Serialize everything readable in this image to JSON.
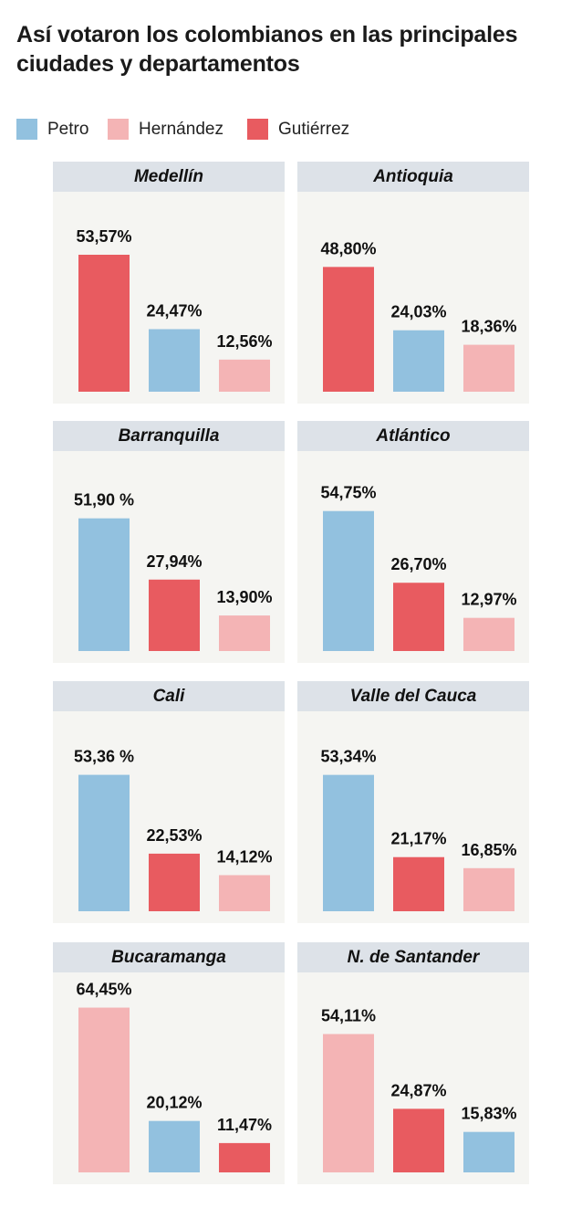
{
  "title": "Así votaron los colombianos en las principales ciudades y departamentos",
  "legend": [
    {
      "label": "Petro",
      "color": "#92c1df"
    },
    {
      "label": "Hernández",
      "color": "#f4b4b5"
    },
    {
      "label": "Gutiérrez",
      "color": "#e85b60"
    }
  ],
  "chart_data": [
    {
      "type": "bar",
      "title": "Medellín",
      "ylim": [
        0,
        70
      ],
      "bars": [
        {
          "candidate": "Gutiérrez",
          "value": 53.57,
          "label": "53,57%"
        },
        {
          "candidate": "Petro",
          "value": 24.47,
          "label": "24,47%"
        },
        {
          "candidate": "Hernández",
          "value": 12.56,
          "label": "12,56%"
        }
      ]
    },
    {
      "type": "bar",
      "title": "Antioquia",
      "ylim": [
        0,
        70
      ],
      "bars": [
        {
          "candidate": "Gutiérrez",
          "value": 48.8,
          "label": "48,80%"
        },
        {
          "candidate": "Petro",
          "value": 24.03,
          "label": "24,03%"
        },
        {
          "candidate": "Hernández",
          "value": 18.36,
          "label": "18,36%"
        }
      ]
    },
    {
      "type": "bar",
      "title": "Barranquilla",
      "ylim": [
        0,
        70
      ],
      "bars": [
        {
          "candidate": "Petro",
          "value": 51.9,
          "label": "51,90 %"
        },
        {
          "candidate": "Gutiérrez",
          "value": 27.94,
          "label": "27,94%"
        },
        {
          "candidate": "Hernández",
          "value": 13.9,
          "label": "13,90%"
        }
      ]
    },
    {
      "type": "bar",
      "title": "Atlántico",
      "ylim": [
        0,
        70
      ],
      "bars": [
        {
          "candidate": "Petro",
          "value": 54.75,
          "label": "54,75%"
        },
        {
          "candidate": "Gutiérrez",
          "value": 26.7,
          "label": "26,70%"
        },
        {
          "candidate": "Hernández",
          "value": 12.97,
          "label": "12,97%"
        }
      ]
    },
    {
      "type": "bar",
      "title": "Cali",
      "ylim": [
        0,
        70
      ],
      "bars": [
        {
          "candidate": "Petro",
          "value": 53.36,
          "label": "53,36 %"
        },
        {
          "candidate": "Gutiérrez",
          "value": 22.53,
          "label": "22,53%"
        },
        {
          "candidate": "Hernández",
          "value": 14.12,
          "label": "14,12%"
        }
      ]
    },
    {
      "type": "bar",
      "title": "Valle del Cauca",
      "ylim": [
        0,
        70
      ],
      "bars": [
        {
          "candidate": "Petro",
          "value": 53.34,
          "label": "53,34%"
        },
        {
          "candidate": "Gutiérrez",
          "value": 21.17,
          "label": "21,17%"
        },
        {
          "candidate": "Hernández",
          "value": 16.85,
          "label": "16,85%"
        }
      ]
    },
    {
      "type": "bar",
      "title": "Bucaramanga",
      "ylim": [
        0,
        70
      ],
      "bars": [
        {
          "candidate": "Hernández",
          "value": 64.45,
          "label": "64,45%"
        },
        {
          "candidate": "Petro",
          "value": 20.12,
          "label": "20,12%"
        },
        {
          "candidate": "Gutiérrez",
          "value": 11.47,
          "label": "11,47%"
        }
      ]
    },
    {
      "type": "bar",
      "title": "N. de Santander",
      "ylim": [
        0,
        70
      ],
      "bars": [
        {
          "candidate": "Hernández",
          "value": 54.11,
          "label": "54,11%"
        },
        {
          "candidate": "Gutiérrez",
          "value": 24.87,
          "label": "24,87%"
        },
        {
          "candidate": "Petro",
          "value": 15.83,
          "label": "15,83%"
        }
      ]
    }
  ]
}
